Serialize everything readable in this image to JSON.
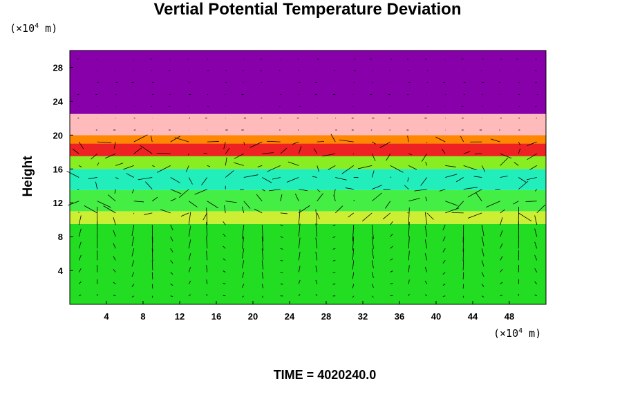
{
  "chart_data": {
    "type": "heatmap",
    "title": "Vertial Potential Temperature Deviation",
    "ylabel": "Height",
    "y_unit_prefix": "(×10",
    "y_unit_exp": "4",
    "y_unit_suffix": " m)",
    "x_unit_prefix": "(×10",
    "x_unit_exp": "4",
    "x_unit_suffix": " m)",
    "xlim": [
      0,
      52
    ],
    "ylim": [
      0,
      30
    ],
    "xticks": [
      4,
      8,
      12,
      16,
      20,
      24,
      28,
      32,
      36,
      40,
      44,
      48
    ],
    "yticks": [
      4,
      8,
      12,
      16,
      20,
      24,
      28
    ],
    "overlay": "wind vectors",
    "layers": [
      {
        "from": 0,
        "to": 9.5,
        "color": "#22dd22"
      },
      {
        "from": 9.5,
        "to": 11,
        "color": "#ccee33"
      },
      {
        "from": 11,
        "to": 13.5,
        "color": "#44ee44"
      },
      {
        "from": 13.5,
        "to": 16,
        "color": "#22eebb"
      },
      {
        "from": 16,
        "to": 17.5,
        "color": "#88ee22"
      },
      {
        "from": 17.5,
        "to": 19,
        "color": "#ee2222"
      },
      {
        "from": 19,
        "to": 20,
        "color": "#ff8800"
      },
      {
        "from": 20,
        "to": 22.5,
        "color": "#ffbbbb"
      },
      {
        "from": 22.5,
        "to": 30,
        "color": "#8800aa"
      }
    ]
  },
  "time_label": "TIME = ",
  "time_value": "4020240.0"
}
